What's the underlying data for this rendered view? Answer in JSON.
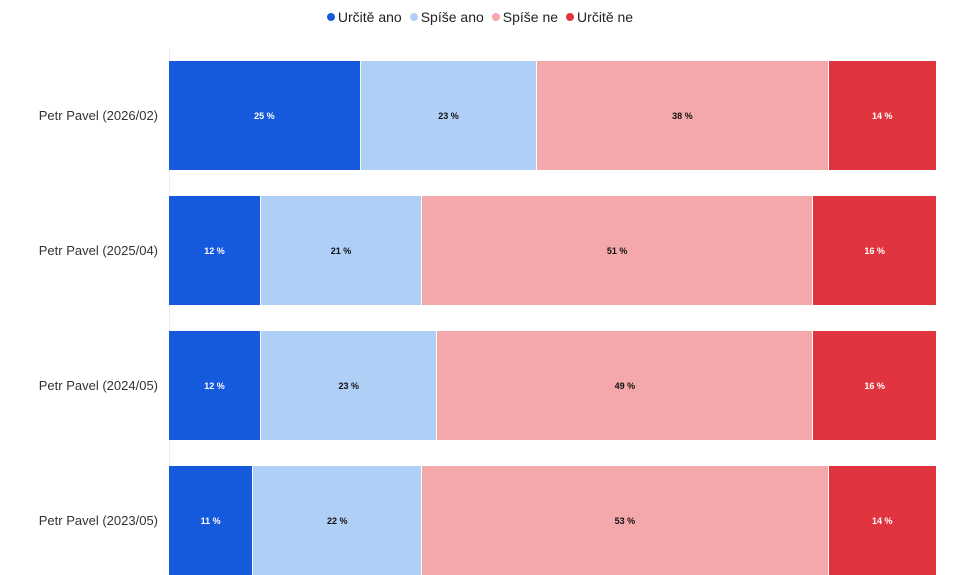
{
  "chart_data": {
    "type": "bar",
    "orientation": "horizontal",
    "stacked": true,
    "normalized": true,
    "categories": [
      "Petr Pavel (2026/02)",
      "Petr Pavel (2025/04)",
      "Petr Pavel (2024/05)",
      "Petr Pavel (2023/05)"
    ],
    "series": [
      {
        "name": "Určitě ano",
        "color": "#1559dd",
        "text_color": "#ffffff",
        "values": [
          25,
          12,
          12,
          11
        ]
      },
      {
        "name": "Spíše ano",
        "color": "#b0cff7",
        "text_color": "#111111",
        "values": [
          23,
          21,
          23,
          22
        ]
      },
      {
        "name": "Spíše ne",
        "color": "#f5a8ab",
        "text_color": "#111111",
        "values": [
          38,
          51,
          49,
          53
        ]
      },
      {
        "name": "Určitě ne",
        "color": "#e0353f",
        "text_color": "#ffffff",
        "values": [
          14,
          16,
          16,
          14
        ]
      }
    ],
    "value_suffix": " %",
    "xlim": [
      0,
      100
    ],
    "legend": "top-center",
    "grid": false
  }
}
